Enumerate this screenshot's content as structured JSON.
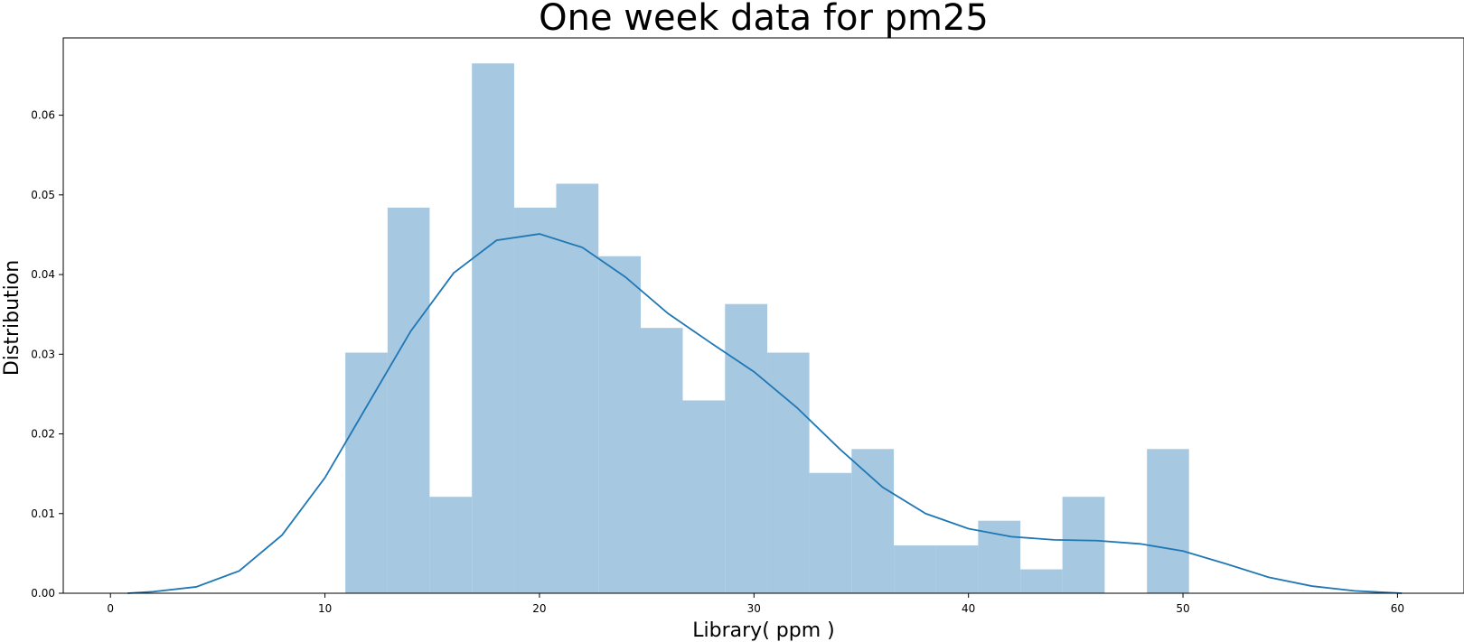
{
  "chart_data": {
    "type": "bar",
    "title": "One week data for pm25",
    "xlabel": "Library( ppm )",
    "ylabel": "Distribution",
    "xlim": [
      -2.2,
      63.1
    ],
    "ylim": [
      0,
      0.0697
    ],
    "x_ticks": [
      0,
      10,
      20,
      30,
      40,
      50,
      60
    ],
    "y_ticks": [
      0.0,
      0.01,
      0.02,
      0.03,
      0.04,
      0.05,
      0.06
    ],
    "y_tick_labels": [
      "0.00",
      "0.01",
      "0.02",
      "0.03",
      "0.04",
      "0.05",
      "0.06"
    ],
    "bin_edges": [
      10.95,
      12.92,
      14.88,
      16.85,
      18.82,
      20.78,
      22.75,
      24.72,
      26.68,
      28.65,
      30.62,
      32.58,
      34.55,
      36.52,
      38.48,
      40.45,
      42.42,
      44.38,
      46.35,
      48.32,
      50.28
    ],
    "values": [
      0.0302,
      0.0484,
      0.0121,
      0.0665,
      0.0484,
      0.0514,
      0.0423,
      0.0333,
      0.0242,
      0.0363,
      0.0302,
      0.0151,
      0.0181,
      0.006,
      0.006,
      0.0091,
      0.003,
      0.0121,
      0.0,
      0.0181
    ],
    "kde": {
      "x": [
        0.8,
        2,
        4,
        6,
        8,
        10,
        12,
        14,
        16,
        18,
        20,
        22,
        24,
        26,
        28,
        30,
        32,
        34,
        36,
        38,
        40,
        42,
        44,
        46,
        48,
        50,
        52,
        54,
        56,
        58,
        60.2
      ],
      "y": [
        0.0,
        0.0002,
        0.0008,
        0.0028,
        0.0073,
        0.0145,
        0.0237,
        0.0329,
        0.0402,
        0.0443,
        0.0451,
        0.0434,
        0.0397,
        0.0351,
        0.0314,
        0.0278,
        0.0233,
        0.0181,
        0.0133,
        0.01,
        0.0081,
        0.0071,
        0.0067,
        0.0066,
        0.0062,
        0.0053,
        0.0037,
        0.002,
        0.0009,
        0.0003,
        0.0
      ]
    },
    "grid": false,
    "colors": {
      "bars": "#a6c8e1",
      "kde": "#1f77b4",
      "axes": "#000000"
    }
  }
}
